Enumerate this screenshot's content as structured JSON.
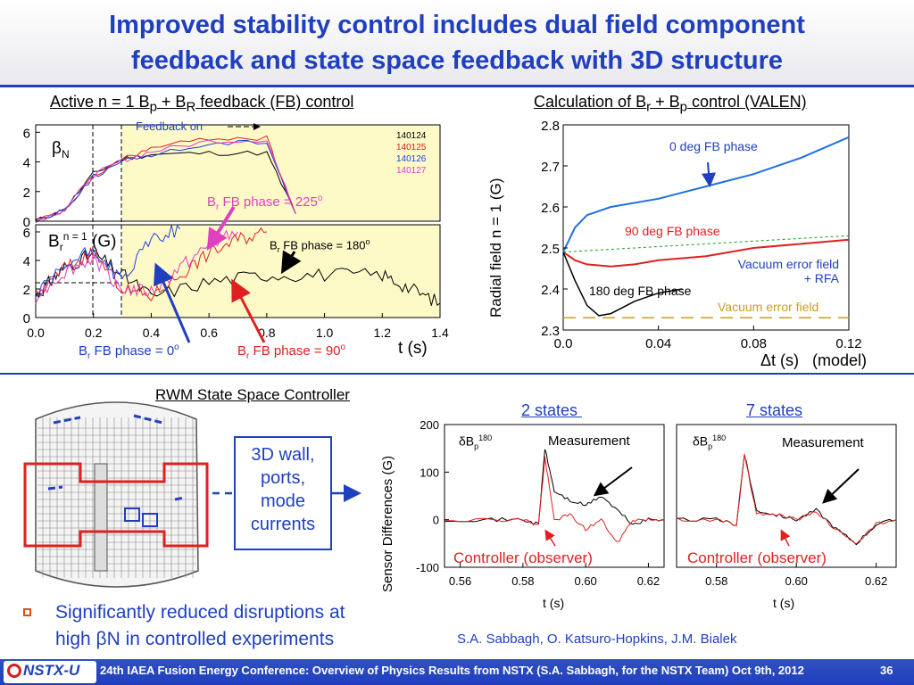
{
  "title": {
    "line1": "Improved stability control includes dual field component",
    "line2": "feedback and state space feedback with 3D structure"
  },
  "colors": {
    "accent": "#1f3fbf",
    "red": "#e02020",
    "magenta": "#e040c0",
    "black": "#000000",
    "blue": "#2070e0",
    "green": "#10a020",
    "gold": "#c8a020",
    "yellow_bg": "#fdfac8"
  },
  "left_panel": {
    "title_html": "Active n = 1 B<sub>p</sub> + B<sub>R</sub> feedback (FB) control",
    "feedback_on": "Feedback on",
    "betaN_label": "βN",
    "br_label": "Br n = 1 (G)",
    "shots": [
      "140124",
      "140125",
      "140126",
      "140127"
    ],
    "shot_colors": [
      "#000000",
      "#e02020",
      "#2040e0",
      "#e040c0"
    ],
    "ann_225": "Br FB phase = 225o",
    "ann_180": "Br FB phase = 180o",
    "ann_0": "Br FB phase = 0o",
    "ann_90": "Br FB phase = 90o",
    "xlabel": "t (s)",
    "xticks": [
      "0.0",
      "0.2",
      "0.4",
      "0.6",
      "0.8",
      "1.0",
      "1.2",
      "1.4"
    ],
    "yticks_top": [
      "0",
      "2",
      "4",
      "6"
    ],
    "yticks_bottom": [
      "0",
      "2",
      "4",
      "6"
    ]
  },
  "right_panel": {
    "title_html": "Calculation of B<sub>r</sub> + B<sub>p</sub> control (VALEN)",
    "ylabel": "Radial field n = 1 (G)",
    "xlabel": "Δt (s)   (model)",
    "xticks": [
      "0.0",
      "0.04",
      "0.08",
      "0.12"
    ],
    "yticks": [
      "2.3",
      "2.4",
      "2.5",
      "2.6",
      "2.7",
      "2.8"
    ],
    "labels": {
      "deg0": "0 deg FB phase",
      "deg90": "90 deg FB phase",
      "deg180": "180 deg FB phase",
      "vac_rfa_1": "Vacuum error field",
      "vac_rfa_2": "+ RFA",
      "vac": "Vacuum error field"
    }
  },
  "rwm": {
    "title": "RWM State Space Controller",
    "box_lines": [
      "3D wall,",
      "ports,",
      "mode",
      "currents"
    ],
    "two_states": "2 states ",
    "seven_states": "7 states",
    "ylabel": "Sensor Differences (G)",
    "dbp_left": "δBp180",
    "dbp_right": "δBp180",
    "measurement_left": "Measurement",
    "measurement_right": "Measurement",
    "controller_left": "Controller (observer)",
    "controller_right": "Controller (observer)",
    "xlabel_left": "t (s)",
    "xlabel_right": "t (s)",
    "yticks": [
      "-100",
      "0",
      "100",
      "200"
    ],
    "xticks_left": [
      "0.56",
      "0.58",
      "0.60",
      "0.62"
    ],
    "xticks_right": [
      "0.58",
      "0.60",
      "0.62"
    ]
  },
  "bullet": {
    "line1": "Significantly reduced disruptions at",
    "line2": "high βN in controlled experiments"
  },
  "credits": "S.A. Sabbagh, O. Katsuro-Hopkins, J.M. Bialek",
  "footer": {
    "logo": "NSTX-U",
    "text": "24th IAEA Fusion Energy Conference: Overview of Physics Results from NSTX (S.A. Sabbagh, for the NSTX Team)    Oct 9th, 2012",
    "page": "36"
  },
  "chart_data": [
    {
      "type": "line",
      "title": "Active n = 1 Bp + BR feedback (FB) control",
      "subplot": "top",
      "ylabel": "βN",
      "xlabel": "",
      "xlim": [
        0,
        1.4
      ],
      "ylim": [
        0,
        6.5
      ],
      "series": [
        {
          "name": "140124",
          "x": [
            0,
            0.1,
            0.2,
            0.3,
            0.4,
            0.6,
            0.8,
            0.9
          ],
          "y": [
            0,
            0.8,
            3.2,
            4.2,
            4.5,
            4.6,
            4.6,
            0.5
          ]
        },
        {
          "name": "140125",
          "x": [
            0,
            0.1,
            0.2,
            0.3,
            0.4,
            0.6,
            0.8,
            0.9
          ],
          "y": [
            0,
            0.7,
            3.0,
            4.2,
            4.9,
            5.6,
            5.6,
            0.5
          ]
        },
        {
          "name": "140126",
          "x": [
            0,
            0.1,
            0.2,
            0.3,
            0.4,
            0.6,
            0.8,
            0.9
          ],
          "y": [
            0,
            0.8,
            3.0,
            4.0,
            4.5,
            5.2,
            5.4,
            0.5
          ]
        },
        {
          "name": "140127",
          "x": [
            0,
            0.1,
            0.2,
            0.3,
            0.4,
            0.6,
            0.8,
            0.9
          ],
          "y": [
            0,
            0.8,
            3.1,
            4.1,
            4.7,
            5.4,
            5.5,
            0.5
          ]
        }
      ]
    },
    {
      "type": "line",
      "subplot": "bottom",
      "ylabel": "Br n = 1 (G)",
      "xlabel": "t (s)",
      "xlim": [
        0,
        1.4
      ],
      "ylim": [
        0,
        6.5
      ],
      "series": [
        {
          "name": "140124",
          "x": [
            0,
            0.05,
            0.1,
            0.2,
            0.3,
            0.4,
            0.6,
            0.8,
            1.0,
            1.2,
            1.3,
            1.4
          ],
          "y": [
            1.5,
            2.5,
            3.5,
            4.5,
            3,
            1.5,
            2.5,
            3,
            3,
            3,
            2,
            1
          ]
        },
        {
          "name": "140125",
          "x": [
            0,
            0.1,
            0.2,
            0.3,
            0.4,
            0.5,
            0.6,
            0.7,
            0.8
          ],
          "y": [
            1.5,
            3.5,
            4.5,
            2,
            1.5,
            3,
            4.5,
            5.5,
            6
          ]
        },
        {
          "name": "140126",
          "x": [
            0,
            0.1,
            0.2,
            0.3,
            0.4,
            0.5
          ],
          "y": [
            1.5,
            3.5,
            4.8,
            2.5,
            5.5,
            6.2
          ]
        },
        {
          "name": "140127",
          "x": [
            0,
            0.1,
            0.2,
            0.3,
            0.4,
            0.5,
            0.6,
            0.7
          ],
          "y": [
            1.5,
            3.2,
            4.2,
            2,
            1.8,
            3.5,
            5,
            6
          ]
        }
      ]
    },
    {
      "type": "line",
      "title": "Calculation of Br + Bp control (VALEN)",
      "xlabel": "Δt (s)   (model)",
      "ylabel": "Radial field n = 1 (G)",
      "xlim": [
        0,
        0.12
      ],
      "ylim": [
        2.3,
        2.8
      ],
      "series": [
        {
          "name": "0 deg FB phase",
          "x": [
            0,
            0.005,
            0.01,
            0.02,
            0.04,
            0.06,
            0.08,
            0.1,
            0.12
          ],
          "y": [
            2.49,
            2.55,
            2.58,
            2.6,
            2.62,
            2.65,
            2.68,
            2.72,
            2.77
          ]
        },
        {
          "name": "90 deg FB phase",
          "x": [
            0,
            0.005,
            0.01,
            0.02,
            0.03,
            0.04,
            0.06,
            0.08,
            0.1,
            0.12
          ],
          "y": [
            2.49,
            2.47,
            2.46,
            2.455,
            2.46,
            2.47,
            2.48,
            2.5,
            2.51,
            2.52
          ]
        },
        {
          "name": "180 deg FB phase",
          "x": [
            0,
            0.005,
            0.01,
            0.015,
            0.02,
            0.03,
            0.04,
            0.05
          ],
          "y": [
            2.49,
            2.42,
            2.36,
            2.335,
            2.34,
            2.37,
            2.39,
            2.4
          ]
        },
        {
          "name": "Vacuum error field + RFA",
          "x": [
            0,
            0.12
          ],
          "y": [
            2.49,
            2.53
          ]
        },
        {
          "name": "Vacuum error field",
          "x": [
            0,
            0.12
          ],
          "y": [
            2.33,
            2.33
          ]
        }
      ]
    },
    {
      "type": "line",
      "title": "2 states ",
      "xlabel": "t (s)",
      "ylabel": "Sensor Differences (G)",
      "xlim": [
        0.555,
        0.625
      ],
      "ylim": [
        -100,
        200
      ],
      "series": [
        {
          "name": "Measurement",
          "x": [
            0.555,
            0.57,
            0.58,
            0.585,
            0.587,
            0.59,
            0.595,
            0.6,
            0.605,
            0.61,
            0.615,
            0.62,
            0.625
          ],
          "y": [
            0,
            0,
            0,
            -10,
            150,
            60,
            40,
            30,
            50,
            20,
            -10,
            0,
            0
          ]
        },
        {
          "name": "Controller (observer)",
          "x": [
            0.555,
            0.57,
            0.58,
            0.585,
            0.587,
            0.59,
            0.595,
            0.6,
            0.605,
            0.61,
            0.615,
            0.62,
            0.625
          ],
          "y": [
            0,
            0,
            0,
            -10,
            130,
            0,
            10,
            -20,
            0,
            -50,
            0,
            0,
            0
          ]
        }
      ]
    },
    {
      "type": "line",
      "title": "7 states",
      "xlabel": "t (s)",
      "xlim": [
        0.57,
        0.625
      ],
      "ylim": [
        -100,
        200
      ],
      "series": [
        {
          "name": "Measurement",
          "x": [
            0.57,
            0.58,
            0.585,
            0.587,
            0.59,
            0.595,
            0.6,
            0.605,
            0.61,
            0.615,
            0.62,
            0.625
          ],
          "y": [
            0,
            0,
            -10,
            140,
            20,
            10,
            0,
            20,
            -20,
            -50,
            -10,
            0
          ]
        },
        {
          "name": "Controller (observer)",
          "x": [
            0.57,
            0.58,
            0.585,
            0.587,
            0.59,
            0.595,
            0.6,
            0.605,
            0.61,
            0.615,
            0.62,
            0.625
          ],
          "y": [
            0,
            0,
            -10,
            135,
            15,
            10,
            0,
            15,
            -20,
            -50,
            -10,
            0
          ]
        }
      ]
    }
  ]
}
